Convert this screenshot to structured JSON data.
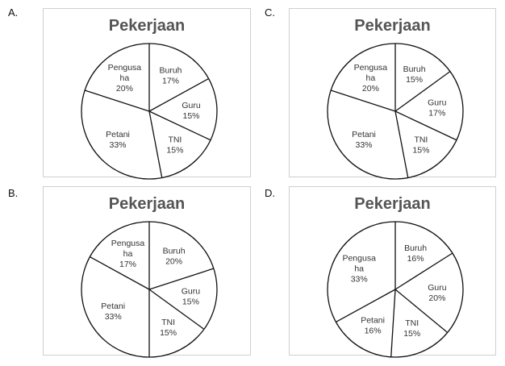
{
  "chart_data": [
    {
      "option": "A.",
      "type": "pie",
      "title": "Pekerjaan",
      "slices": [
        {
          "label": [
            "Buruh"
          ],
          "value": 17
        },
        {
          "label": [
            "Guru"
          ],
          "value": 15
        },
        {
          "label": [
            "TNI"
          ],
          "value": 15
        },
        {
          "label": [
            "Petani"
          ],
          "value": 33
        },
        {
          "label": [
            "Pengusa",
            "ha"
          ],
          "value": 20
        }
      ]
    },
    {
      "option": "C.",
      "type": "pie",
      "title": "Pekerjaan",
      "slices": [
        {
          "label": [
            "Buruh"
          ],
          "value": 15
        },
        {
          "label": [
            "Guru"
          ],
          "value": 17
        },
        {
          "label": [
            "TNI"
          ],
          "value": 15
        },
        {
          "label": [
            "Petani"
          ],
          "value": 33
        },
        {
          "label": [
            "Pengusa",
            "ha"
          ],
          "value": 20
        }
      ]
    },
    {
      "option": "B.",
      "type": "pie",
      "title": "Pekerjaan",
      "slices": [
        {
          "label": [
            "Buruh"
          ],
          "value": 20
        },
        {
          "label": [
            "Guru"
          ],
          "value": 15
        },
        {
          "label": [
            "TNI"
          ],
          "value": 15
        },
        {
          "label": [
            "Petani"
          ],
          "value": 33
        },
        {
          "label": [
            "Pengusa",
            "ha"
          ],
          "value": 17
        }
      ]
    },
    {
      "option": "D.",
      "type": "pie",
      "title": "Pekerjaan",
      "slices": [
        {
          "label": [
            "Buruh"
          ],
          "value": 16
        },
        {
          "label": [
            "Guru"
          ],
          "value": 20
        },
        {
          "label": [
            "TNI"
          ],
          "value": 15
        },
        {
          "label": [
            "Petani"
          ],
          "value": 16
        },
        {
          "label": [
            "Pengusa",
            "ha"
          ],
          "value": 33
        }
      ]
    }
  ]
}
